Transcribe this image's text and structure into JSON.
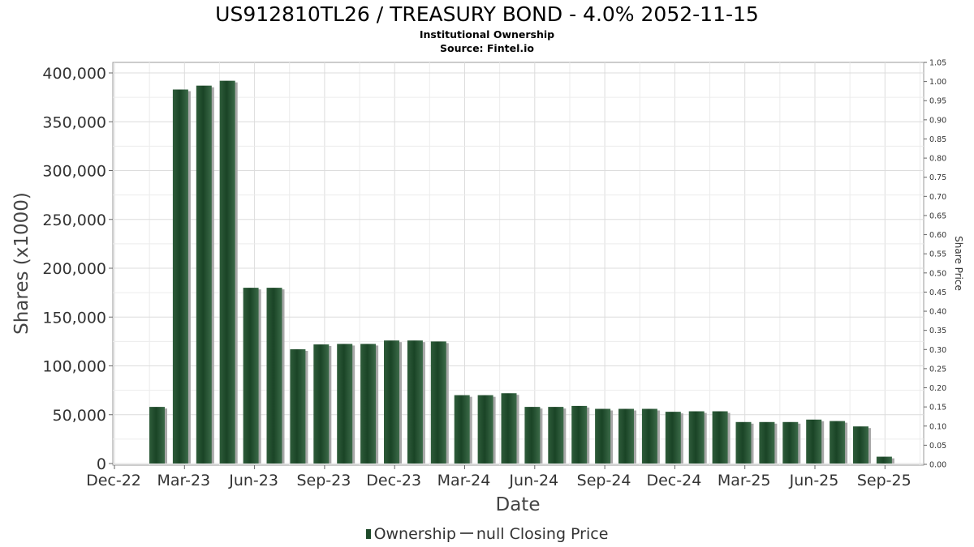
{
  "chart_data": {
    "type": "bar",
    "title": "US912810TL26 / TREASURY BOND - 4.0% 2052-11-15",
    "subtitle": "Institutional Ownership",
    "source": "Source: Fintel.io",
    "xlabel": "Date",
    "ylabel": "Shares (x1000)",
    "y2label": "Share Price",
    "ylim": [
      0,
      412000
    ],
    "y_ticks": [
      0,
      50000,
      100000,
      150000,
      200000,
      250000,
      300000,
      350000,
      400000
    ],
    "y_tick_labels": [
      "0",
      "50,000",
      "100,000",
      "150,000",
      "200,000",
      "250,000",
      "300,000",
      "350,000",
      "400,000"
    ],
    "y2lim": [
      0,
      1.05
    ],
    "y2_tick_labels": [
      "0.00",
      "0.05",
      "0.10",
      "0.15",
      "0.20",
      "0.25",
      "0.30",
      "0.35",
      "0.40",
      "0.45",
      "0.50",
      "0.55",
      "0.60",
      "0.65",
      "0.70",
      "0.75",
      "0.80",
      "0.85",
      "0.90",
      "0.95",
      "1.00",
      "1.05"
    ],
    "x_tick_labels": [
      "Dec-22",
      "Mar-23",
      "Jun-23",
      "Sep-23",
      "Dec-23",
      "Mar-24",
      "Jun-24",
      "Sep-24",
      "Dec-24",
      "Mar-25",
      "Jun-25",
      "Sep-25"
    ],
    "grid": true,
    "legend_position": "bottom",
    "series": [
      {
        "name": "Ownership",
        "color": "#1e4a2a",
        "values": [
          58000,
          383000,
          387000,
          392000,
          180000,
          180000,
          117000,
          122000,
          122500,
          122500,
          126000,
          126000,
          125000,
          70000,
          70000,
          72000,
          58000,
          58000,
          59000,
          56000,
          56000,
          56000,
          53000,
          53500,
          53500,
          42500,
          42500,
          42500,
          45000,
          43500,
          38000,
          7000
        ]
      },
      {
        "name": "null Closing Price",
        "color": "#555555",
        "values": []
      }
    ]
  }
}
